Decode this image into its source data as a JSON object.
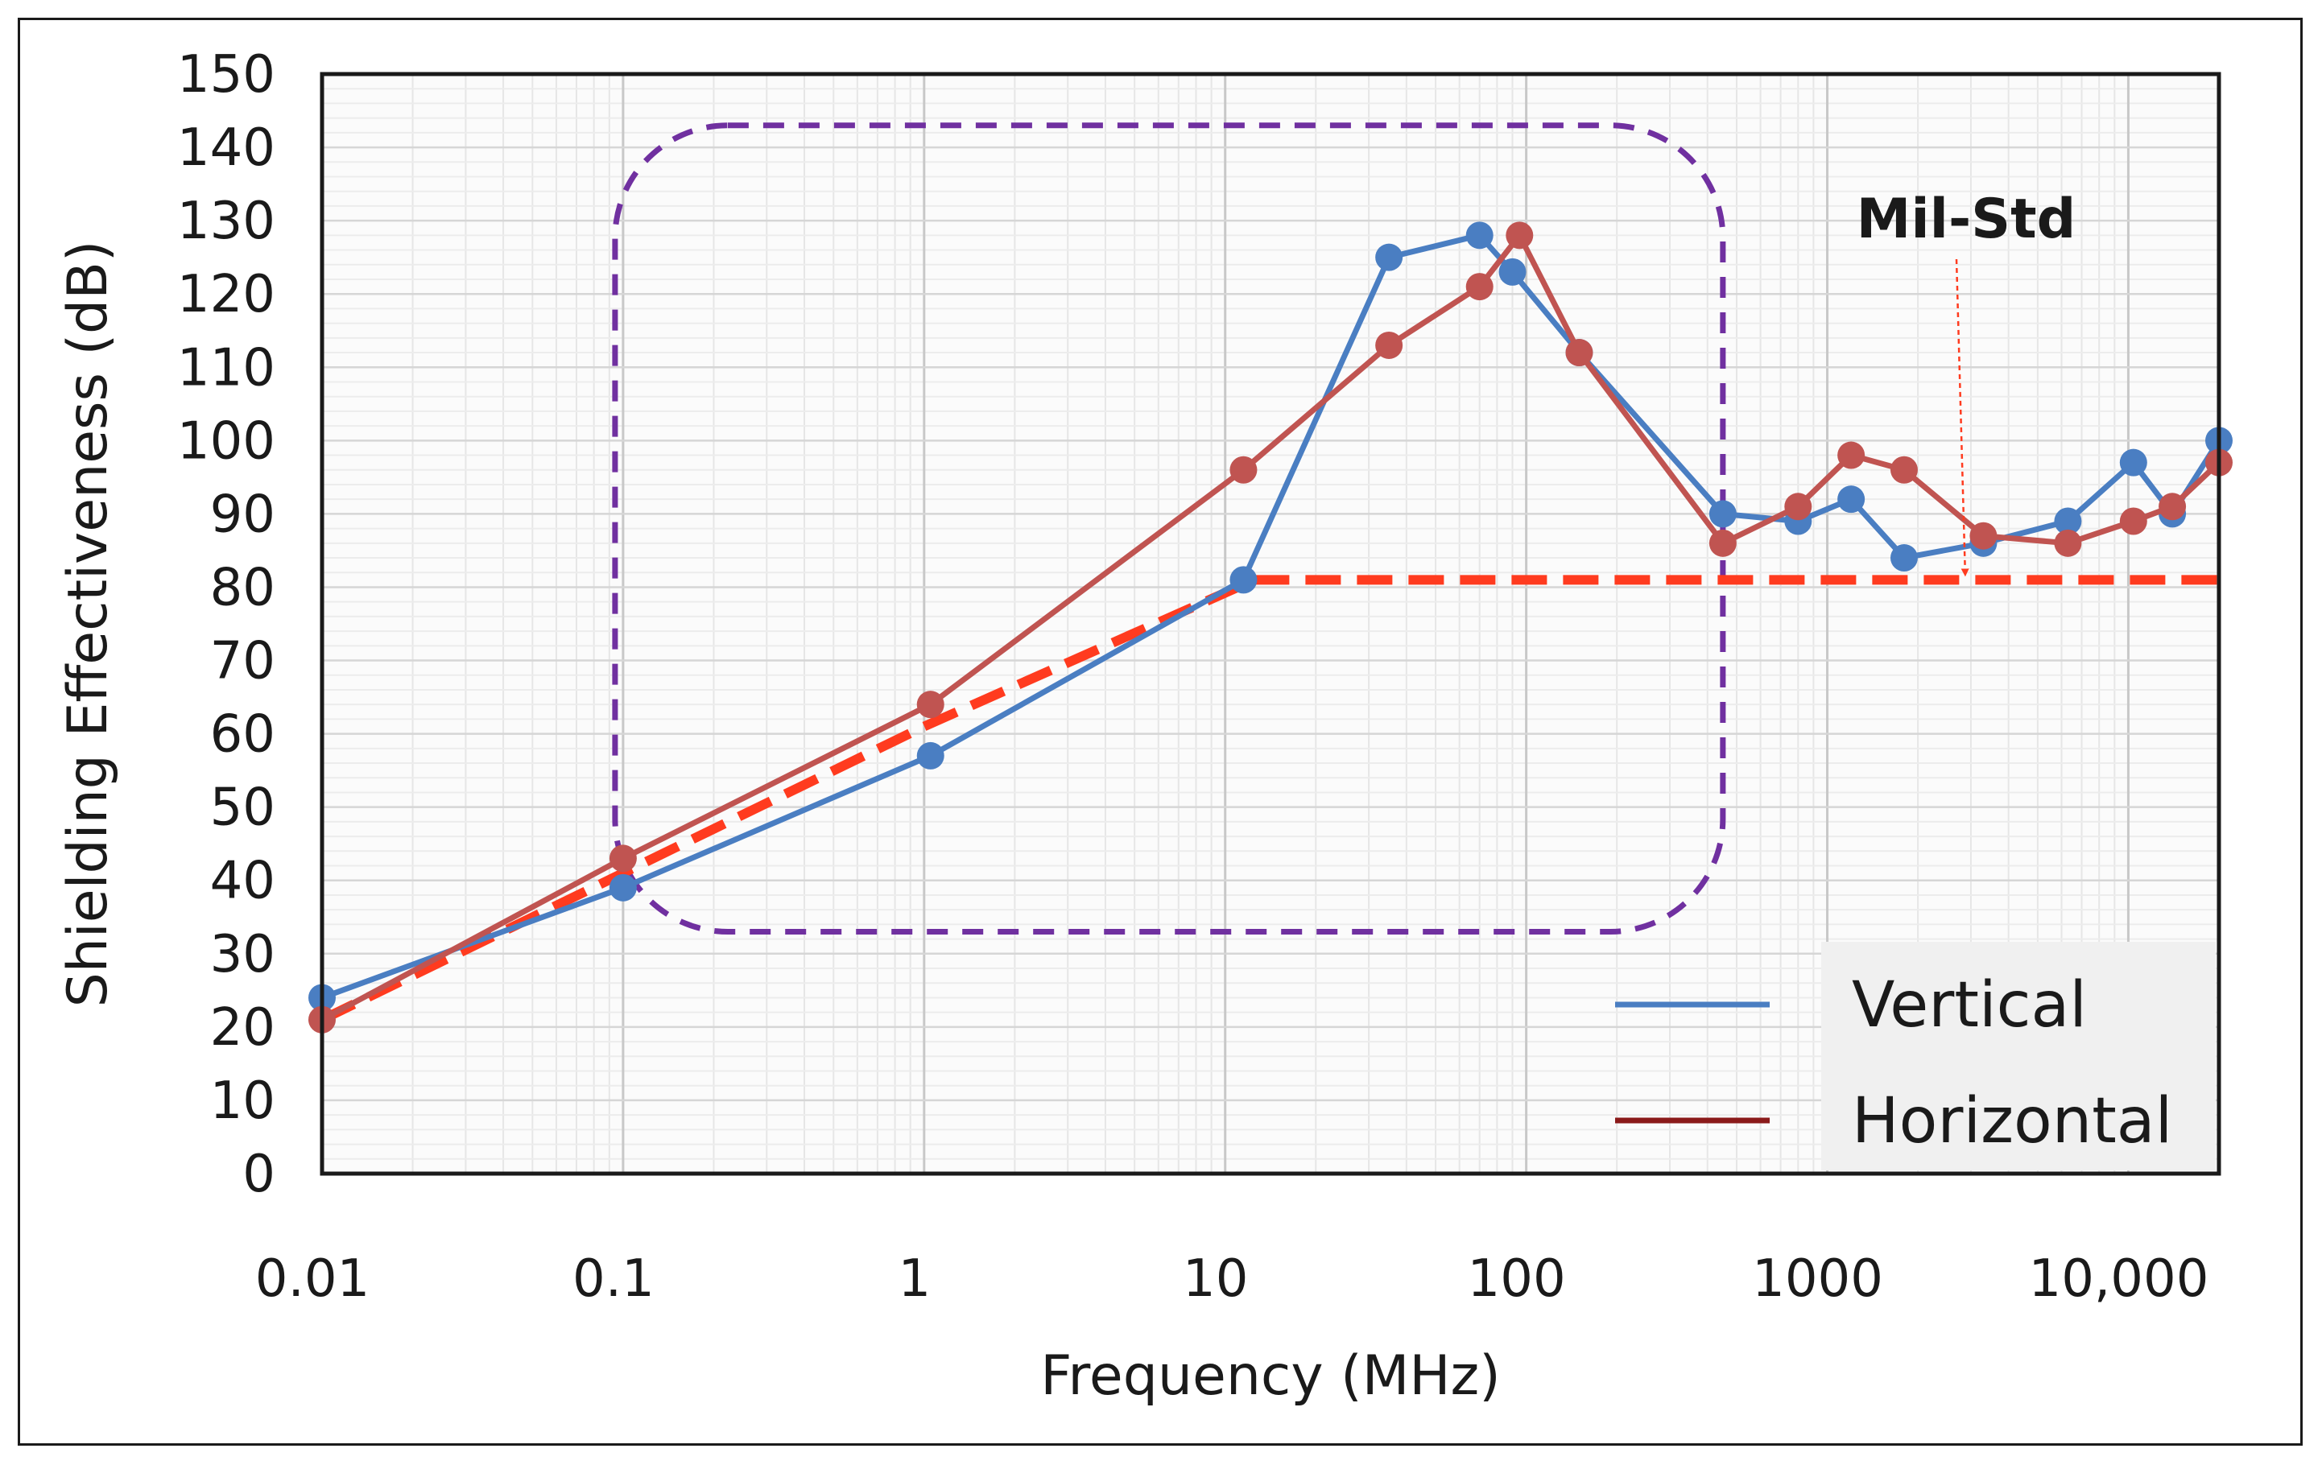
{
  "chart_data": {
    "type": "line",
    "xscale": "log",
    "xlabel": "Frequency (MHz)",
    "ylabel": "Shielding Effectiveness (dB)",
    "xlim": [
      0.01,
      20000
    ],
    "ylim": [
      0,
      150
    ],
    "grid": true,
    "legend_position": "bottom-right",
    "y_ticks": [
      "0",
      "10",
      "20",
      "30",
      "40",
      "50",
      "60",
      "70",
      "80",
      "90",
      "100",
      "110",
      "120",
      "130",
      "140",
      "150"
    ],
    "x_ticks": [
      {
        "value": 0.01,
        "label": "0.01"
      },
      {
        "value": 0.1,
        "label": "0.1"
      },
      {
        "value": 1,
        "label": "1"
      },
      {
        "value": 10,
        "label": "10"
      },
      {
        "value": 100,
        "label": "100"
      },
      {
        "value": 1000,
        "label": "1000"
      },
      {
        "value": 10000,
        "label": "10,000"
      }
    ],
    "series": [
      {
        "name": "Vertical",
        "color": "#4a7ec2",
        "markers": true,
        "points": [
          [
            0.01,
            24
          ],
          [
            0.1,
            39
          ],
          [
            1.05,
            57
          ],
          [
            11.5,
            81
          ],
          [
            35,
            125
          ],
          [
            70,
            128
          ],
          [
            90,
            123
          ],
          [
            150,
            112
          ],
          [
            450,
            90
          ],
          [
            800,
            89
          ],
          [
            1200,
            92
          ],
          [
            1800,
            84
          ],
          [
            3300,
            86
          ],
          [
            6300,
            89
          ],
          [
            10400,
            97
          ],
          [
            14000,
            90
          ],
          [
            20000,
            100
          ]
        ]
      },
      {
        "name": "Horizontal",
        "color": "#c05451",
        "legend_color": "#8b1a1a",
        "markers": true,
        "points": [
          [
            0.01,
            21
          ],
          [
            0.1,
            43
          ],
          [
            1.05,
            64
          ],
          [
            11.5,
            96
          ],
          [
            35,
            113
          ],
          [
            70,
            121
          ],
          [
            95,
            128
          ],
          [
            150,
            112
          ],
          [
            450,
            86
          ],
          [
            800,
            91
          ],
          [
            1200,
            98
          ],
          [
            1800,
            96
          ],
          [
            3300,
            87
          ],
          [
            6300,
            86
          ],
          [
            10400,
            89
          ],
          [
            14000,
            91
          ],
          [
            20000,
            97
          ]
        ]
      },
      {
        "name": "Mil-Std",
        "color": "#ff3b1f",
        "dashed": true,
        "markers": false,
        "points": [
          [
            0.01,
            21
          ],
          [
            0.1,
            41
          ],
          [
            1,
            61
          ],
          [
            12.5,
            81
          ],
          [
            20000,
            81
          ]
        ]
      }
    ],
    "annotations": [
      {
        "text": "Mil-Std",
        "points_to": [
          2700,
          81
        ],
        "color": "#ff3b1f"
      }
    ],
    "highlight_region": {
      "xmin": 0.1,
      "xmax": 450,
      "ymin": 33,
      "ymax": 143,
      "color": "#7030a0",
      "style": "dashed-rounded-rect"
    }
  }
}
